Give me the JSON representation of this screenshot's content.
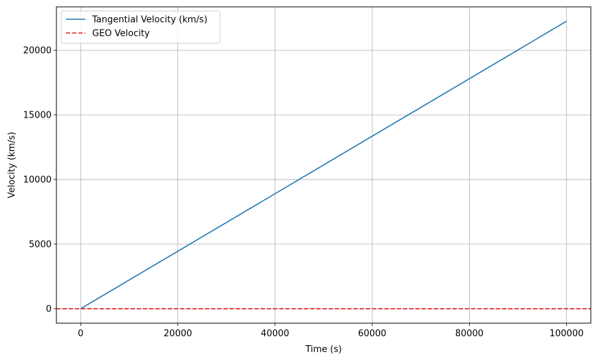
{
  "chart_data": {
    "type": "line",
    "title": "",
    "xlabel": "Time (s)",
    "ylabel": "Velocity (km/s)",
    "xlim": [
      -5000,
      105000
    ],
    "ylim": [
      -1120,
      23360
    ],
    "x_ticks": [
      0,
      20000,
      40000,
      60000,
      80000,
      100000
    ],
    "x_tick_labels": [
      "0",
      "20000",
      "40000",
      "60000",
      "80000",
      "100000"
    ],
    "y_ticks": [
      0,
      5000,
      10000,
      15000,
      20000
    ],
    "y_tick_labels": [
      "0",
      "5000",
      "10000",
      "15000",
      "20000"
    ],
    "grid": true,
    "legend_position": "top-left",
    "series": [
      {
        "name": "Tangential Velocity (km/s)",
        "style": "solid",
        "color": "#1f77b4",
        "x": [
          0,
          100000
        ],
        "y": [
          0,
          22250
        ]
      },
      {
        "name": "GEO Velocity",
        "style": "dashed",
        "kind": "horizontal-line",
        "color": "#e41a1c",
        "y": 3.07
      }
    ]
  }
}
